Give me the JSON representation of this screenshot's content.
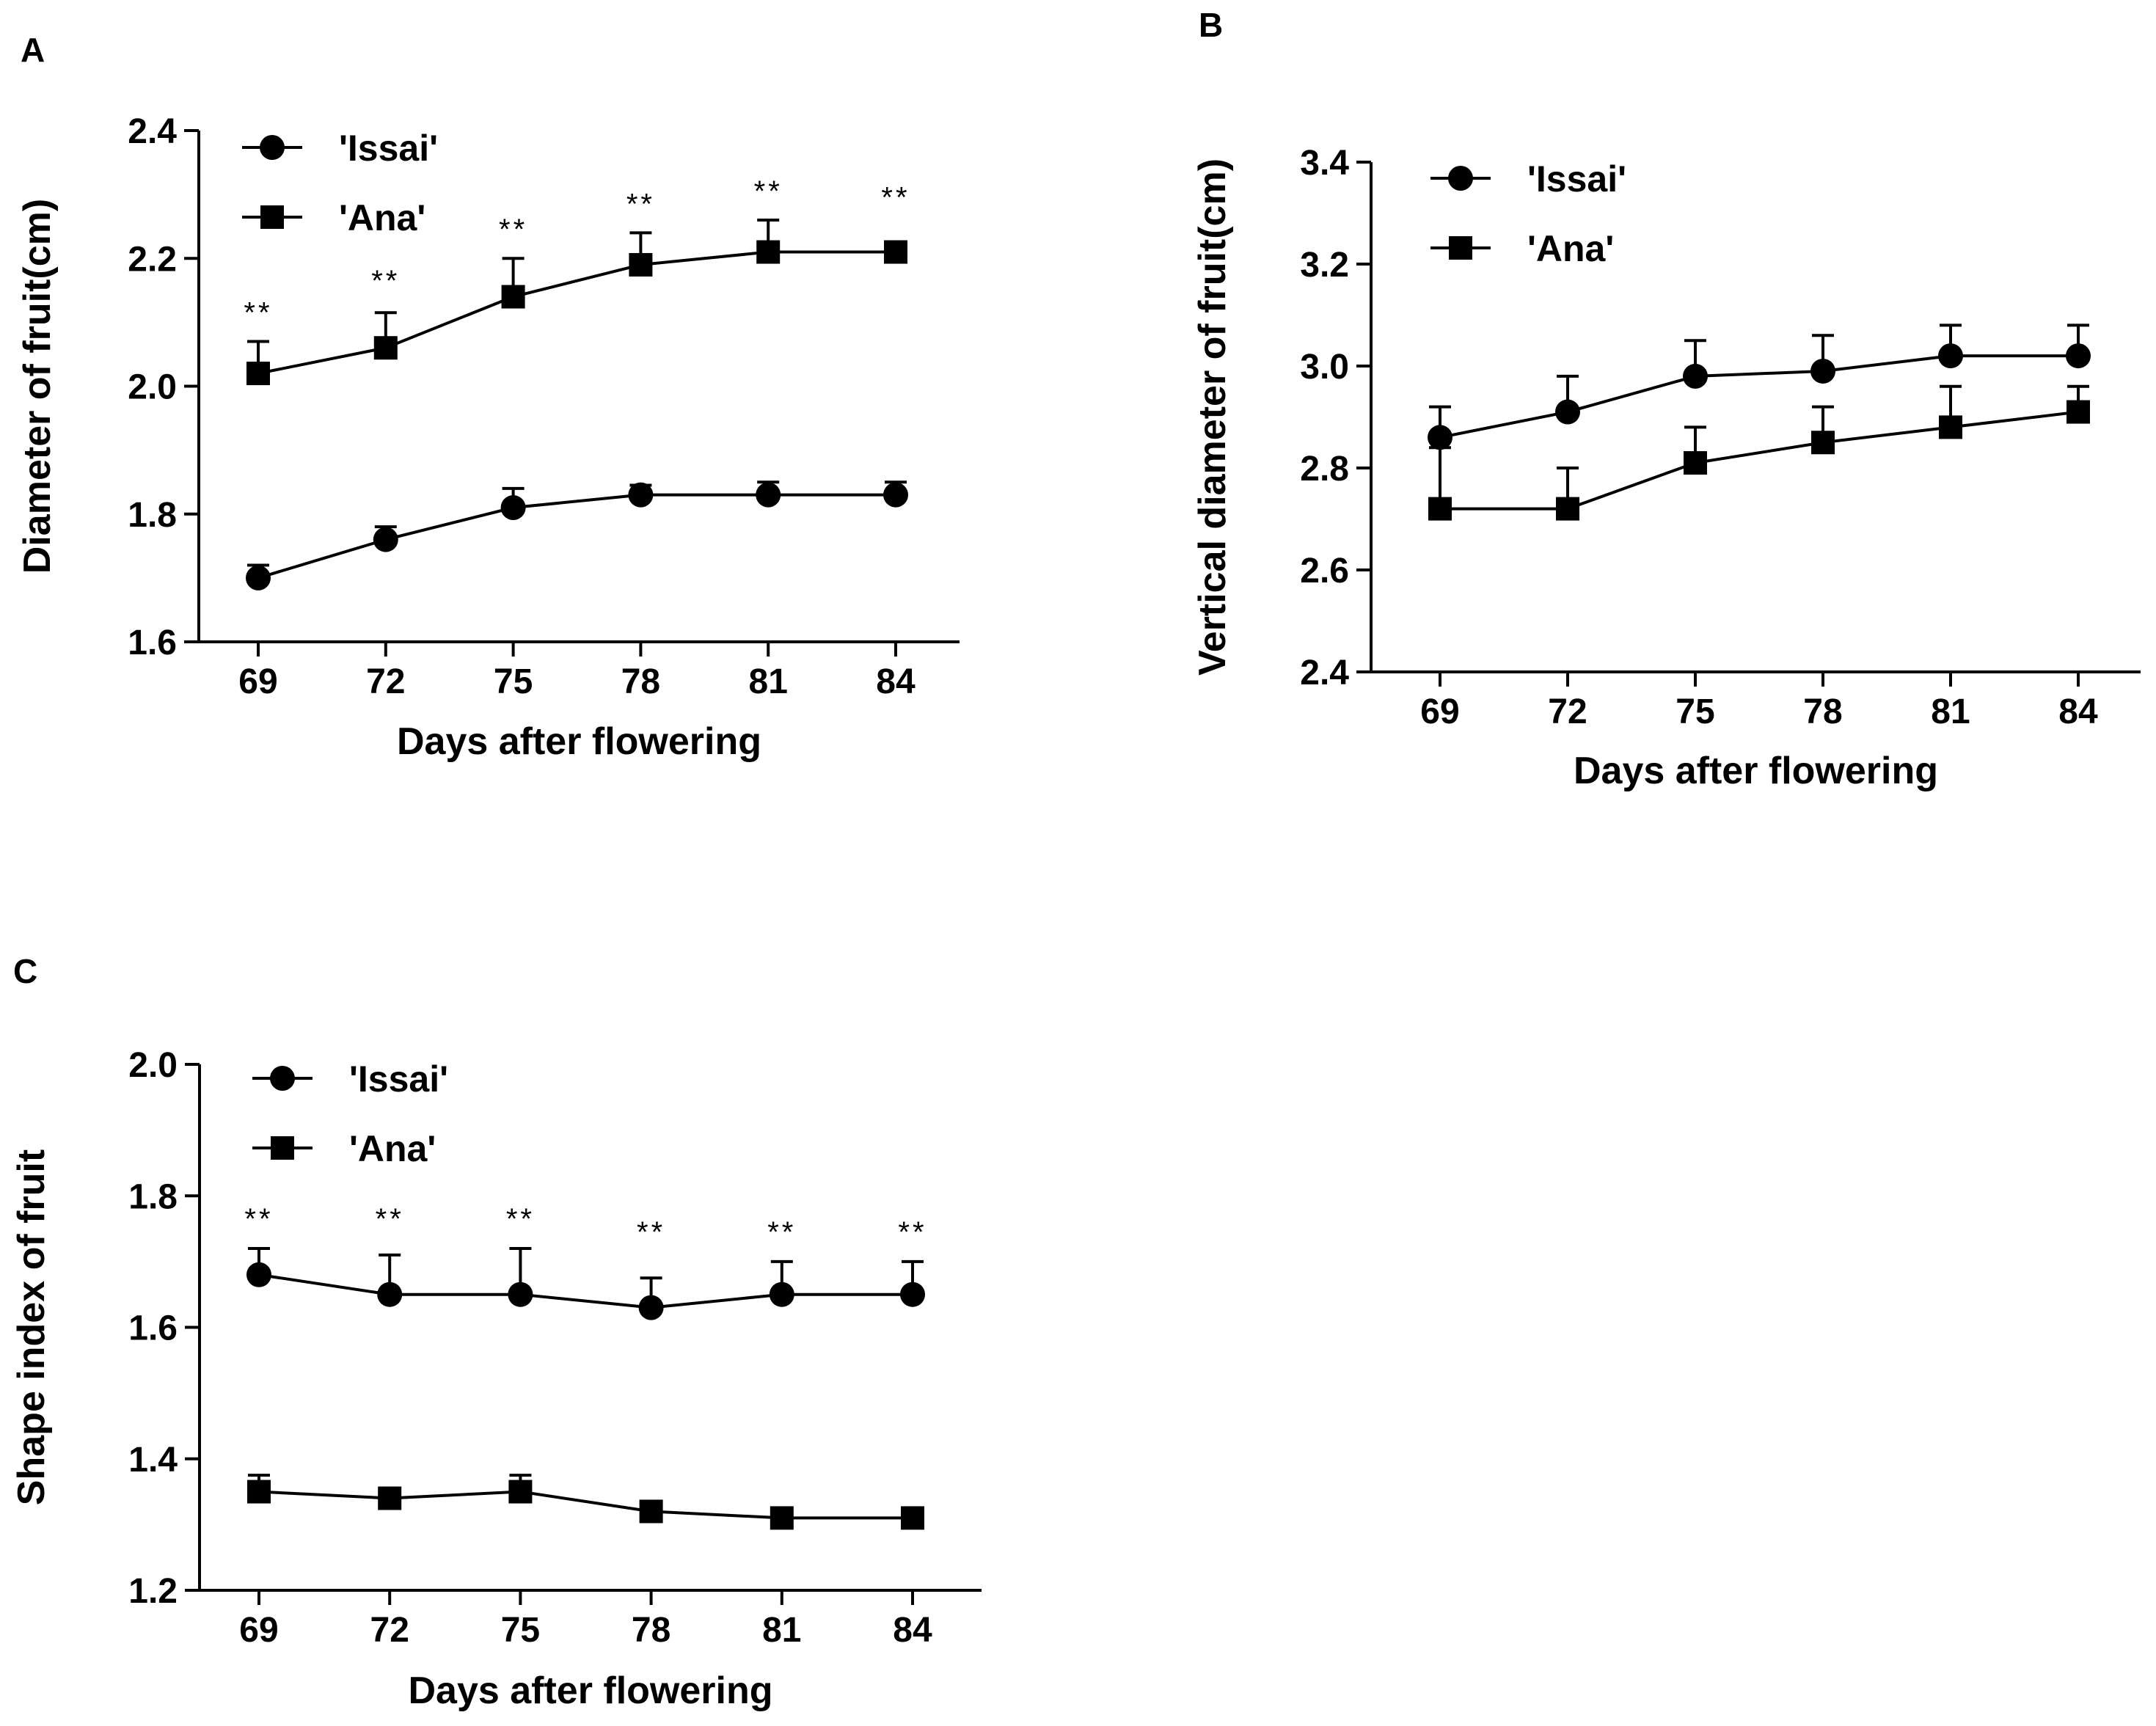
{
  "chart_data": [
    {
      "panel": "A",
      "type": "line",
      "xlabel": "Days after flowering",
      "ylabel": "Diameter of fruit(cm)",
      "categories": [
        "69",
        "72",
        "75",
        "78",
        "81",
        "84"
      ],
      "ylim": [
        1.6,
        2.4
      ],
      "yticks": [
        "1.6",
        "1.8",
        "2.0",
        "2.2",
        "2.4"
      ],
      "legend": "top-left",
      "grid": false,
      "series": [
        {
          "name": "'Issai'",
          "marker": "circle",
          "values": [
            1.7,
            1.76,
            1.81,
            1.83,
            1.83,
            1.83
          ],
          "errors": [
            0.02,
            0.02,
            0.03,
            0.015,
            0.02,
            0.02
          ]
        },
        {
          "name": "'Ana'",
          "marker": "square",
          "values": [
            2.02,
            2.06,
            2.14,
            2.19,
            2.21,
            2.21
          ],
          "errors": [
            0.05,
            0.055,
            0.06,
            0.05,
            0.05,
            0.0
          ]
        }
      ],
      "annotations": [
        {
          "x": "69",
          "y": 2.1,
          "text": "**"
        },
        {
          "x": "72",
          "y": 2.15,
          "text": "**"
        },
        {
          "x": "75",
          "y": 2.23,
          "text": "**"
        },
        {
          "x": "78",
          "y": 2.27,
          "text": "**"
        },
        {
          "x": "81",
          "y": 2.29,
          "text": "**"
        },
        {
          "x": "84",
          "y": 2.28,
          "text": "**"
        }
      ]
    },
    {
      "panel": "B",
      "type": "line",
      "xlabel": "Days after flowering",
      "ylabel": "Vertical diameter of fruit(cm)",
      "categories": [
        "69",
        "72",
        "75",
        "78",
        "81",
        "84"
      ],
      "ylim": [
        2.4,
        3.4
      ],
      "yticks": [
        "2.4",
        "2.6",
        "2.8",
        "3.0",
        "3.2",
        "3.4"
      ],
      "legend": "top-left",
      "grid": false,
      "series": [
        {
          "name": "'Issai'",
          "marker": "circle",
          "values": [
            2.86,
            2.91,
            2.98,
            2.99,
            3.02,
            3.02
          ],
          "errors": [
            0.06,
            0.07,
            0.07,
            0.07,
            0.06,
            0.06
          ]
        },
        {
          "name": "'Ana'",
          "marker": "square",
          "values": [
            2.72,
            2.72,
            2.81,
            2.85,
            2.88,
            2.91
          ],
          "errors": [
            0.12,
            0.08,
            0.07,
            0.07,
            0.08,
            0.05
          ]
        }
      ],
      "annotations": []
    },
    {
      "panel": "C",
      "type": "line",
      "xlabel": "Days after flowering",
      "ylabel": "Shape index of fruit",
      "categories": [
        "69",
        "72",
        "75",
        "78",
        "81",
        "84"
      ],
      "ylim": [
        1.2,
        2.0
      ],
      "yticks": [
        "1.2",
        "1.4",
        "1.6",
        "1.8",
        "2.0"
      ],
      "legend": "top-left",
      "grid": false,
      "series": [
        {
          "name": "'Issai'",
          "marker": "circle",
          "values": [
            1.68,
            1.65,
            1.65,
            1.63,
            1.65,
            1.65
          ],
          "errors": [
            0.04,
            0.06,
            0.07,
            0.045,
            0.05,
            0.05
          ]
        },
        {
          "name": "'Ana'",
          "marker": "square",
          "values": [
            1.35,
            1.34,
            1.35,
            1.32,
            1.31,
            1.31
          ],
          "errors": [
            0.025,
            0.0,
            0.025,
            0.0,
            0.0,
            0.0
          ]
        }
      ],
      "annotations": [
        {
          "x": "69",
          "y": 1.75,
          "text": "**"
        },
        {
          "x": "72",
          "y": 1.75,
          "text": "**"
        },
        {
          "x": "75",
          "y": 1.75,
          "text": "**"
        },
        {
          "x": "78",
          "y": 1.73,
          "text": "**"
        },
        {
          "x": "81",
          "y": 1.73,
          "text": "**"
        },
        {
          "x": "84",
          "y": 1.73,
          "text": "**"
        }
      ]
    }
  ]
}
